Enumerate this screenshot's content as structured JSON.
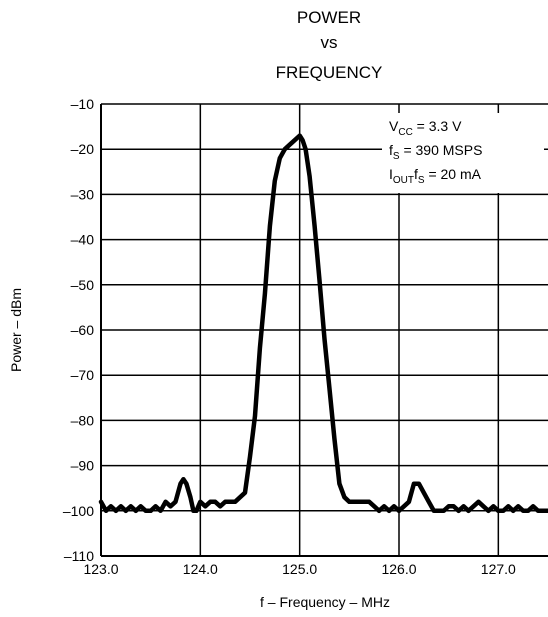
{
  "chart_data": {
    "type": "line",
    "title_lines": [
      "POWER",
      "vs",
      "FREQUENCY"
    ],
    "xlabel": "f – Frequency – MHz",
    "ylabel": "Power – dBm",
    "xlim": [
      123.0,
      127.5
    ],
    "ylim": [
      -110,
      -10
    ],
    "x_ticks": [
      123.0,
      124.0,
      125.0,
      126.0,
      127.0
    ],
    "x_tick_labels": [
      "123.0",
      "124.0",
      "125.0",
      "126.0",
      "127.0"
    ],
    "y_ticks": [
      -10,
      -20,
      -30,
      -40,
      -50,
      -60,
      -70,
      -80,
      -90,
      -100,
      -110
    ],
    "y_tick_labels": [
      "–10",
      "–20",
      "–30",
      "–40",
      "–50",
      "–60",
      "–70",
      "–80",
      "–90",
      "–100",
      "–110"
    ],
    "grid": true,
    "annotations": [
      {
        "main": "V",
        "sub": "CC",
        "rest": " = 3.3 V"
      },
      {
        "main": "f",
        "sub": "S",
        "rest": " = 390 MSPS"
      },
      {
        "main": "I",
        "sub": "OUT",
        "main2": "f",
        "sub2": "S",
        "rest": " = 20 mA"
      }
    ],
    "series": [
      {
        "x": [
          123.0,
          123.05,
          123.1,
          123.15,
          123.2,
          123.25,
          123.3,
          123.35,
          123.4,
          123.45,
          123.5,
          123.55,
          123.6,
          123.65,
          123.7,
          123.75,
          123.8,
          123.83,
          123.86,
          123.9,
          123.93,
          123.96,
          124.0,
          124.05,
          124.1,
          124.15,
          124.2,
          124.25,
          124.3,
          124.35,
          124.4,
          124.45,
          124.5,
          124.55,
          124.6,
          124.65,
          124.7,
          124.75,
          124.8,
          124.85,
          124.9,
          124.95,
          125.0,
          125.03,
          125.06,
          125.1,
          125.15,
          125.2,
          125.25,
          125.3,
          125.35,
          125.4,
          125.45,
          125.5,
          125.55,
          125.6,
          125.65,
          125.7,
          125.75,
          125.8,
          125.85,
          125.9,
          125.95,
          126.0,
          126.05,
          126.1,
          126.15,
          126.2,
          126.25,
          126.3,
          126.35,
          126.4,
          126.45,
          126.5,
          126.55,
          126.6,
          126.65,
          126.7,
          126.75,
          126.8,
          126.85,
          126.9,
          126.95,
          127.0,
          127.05,
          127.1,
          127.15,
          127.2,
          127.25,
          127.3,
          127.35,
          127.4,
          127.45,
          127.5
        ],
        "y": [
          -98,
          -100,
          -99,
          -100,
          -99,
          -100,
          -99,
          -100,
          -99,
          -100,
          -100,
          -99,
          -100,
          -98,
          -99,
          -98,
          -94,
          -93,
          -94,
          -97,
          -100,
          -100,
          -98,
          -99,
          -98,
          -98,
          -99,
          -98,
          -98,
          -98,
          -97,
          -96,
          -88,
          -79,
          -64,
          -52,
          -37,
          -27,
          -22,
          -20,
          -19,
          -18,
          -17,
          -18,
          -20,
          -26,
          -37,
          -49,
          -62,
          -73,
          -84,
          -94,
          -97,
          -98,
          -98,
          -98,
          -98,
          -98,
          -99,
          -100,
          -99,
          -100,
          -99,
          -100,
          -99,
          -98,
          -94,
          -94,
          -96,
          -98,
          -100,
          -100,
          -100,
          -99,
          -99,
          -100,
          -99,
          -100,
          -99,
          -98,
          -99,
          -100,
          -99,
          -100,
          -100,
          -99,
          -100,
          -99,
          -100,
          -100,
          -99,
          -100,
          -100,
          -100
        ]
      }
    ]
  }
}
